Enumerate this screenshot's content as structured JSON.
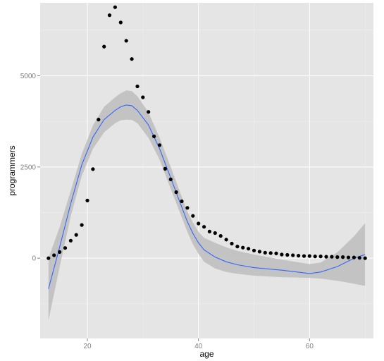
{
  "chart_data": {
    "type": "scatter",
    "title": "",
    "xlabel": "age",
    "ylabel": "programmers",
    "xlim": [
      11.5,
      71.5
    ],
    "ylim": [
      -2200,
      7000
    ],
    "x_ticks": [
      20,
      40,
      60
    ],
    "x_tick_labels": [
      "20",
      "40",
      "60"
    ],
    "y_ticks": [
      0,
      2500,
      5000
    ],
    "y_tick_labels": [
      "0",
      "2500",
      "5000"
    ],
    "grid": true,
    "legend": "none",
    "colors": {
      "panel_background": "#e5e5e5",
      "grid_major": "#ffffff",
      "grid_minor": "#f2f2f2",
      "points": "#000000",
      "smooth_line": "#3366ff",
      "confidence_band": "#bdbdbd"
    },
    "series": [
      {
        "kind": "points",
        "x": [
          13,
          14,
          15,
          16,
          17,
          18,
          19,
          20,
          21,
          22,
          23,
          24,
          25,
          26,
          27,
          28,
          29,
          30,
          31,
          32,
          33,
          34,
          35,
          36,
          37,
          38,
          39,
          40,
          41,
          42,
          43,
          44,
          45,
          46,
          47,
          48,
          49,
          50,
          51,
          52,
          53,
          54,
          55,
          56,
          57,
          58,
          59,
          60,
          61,
          62,
          63,
          64,
          65,
          66,
          67,
          68,
          69,
          70
        ],
        "y": [
          0,
          80,
          170,
          280,
          480,
          640,
          910,
          1580,
          2440,
          3800,
          5800,
          6660,
          6880,
          6460,
          5960,
          5460,
          4710,
          4410,
          4010,
          3340,
          3100,
          2450,
          2160,
          1810,
          1560,
          1380,
          1160,
          950,
          860,
          730,
          690,
          610,
          510,
          400,
          320,
          290,
          260,
          210,
          180,
          150,
          140,
          130,
          100,
          90,
          80,
          70,
          60,
          60,
          50,
          50,
          40,
          40,
          30,
          30,
          20,
          20,
          10,
          0
        ]
      },
      {
        "kind": "smooth",
        "x": [
          13,
          15,
          17,
          19,
          21,
          23,
          25,
          26,
          27,
          28,
          29,
          31,
          33,
          35,
          37,
          38,
          39,
          40,
          41,
          43,
          45,
          47,
          50,
          55,
          60,
          62,
          65,
          68,
          70
        ],
        "y": [
          -840,
          300,
          1500,
          2560,
          3320,
          3800,
          4050,
          4150,
          4200,
          4180,
          4050,
          3650,
          3000,
          2200,
          1400,
          1000,
          680,
          420,
          230,
          30,
          -100,
          -180,
          -260,
          -330,
          -420,
          -380,
          -230,
          0,
          100
        ],
        "lower": [
          -1700,
          -250,
          1150,
          2260,
          3000,
          3450,
          3700,
          3780,
          3800,
          3790,
          3700,
          3300,
          2700,
          1900,
          1120,
          720,
          380,
          120,
          -100,
          -280,
          -380,
          -430,
          -480,
          -520,
          -540,
          -560,
          -620,
          -700,
          -760
        ],
        "upper": [
          0,
          850,
          1850,
          2860,
          3640,
          4150,
          4410,
          4520,
          4600,
          4580,
          4440,
          4000,
          3300,
          2500,
          1680,
          1280,
          980,
          720,
          560,
          420,
          300,
          200,
          100,
          -40,
          -160,
          -120,
          160,
          600,
          960
        ]
      }
    ]
  }
}
